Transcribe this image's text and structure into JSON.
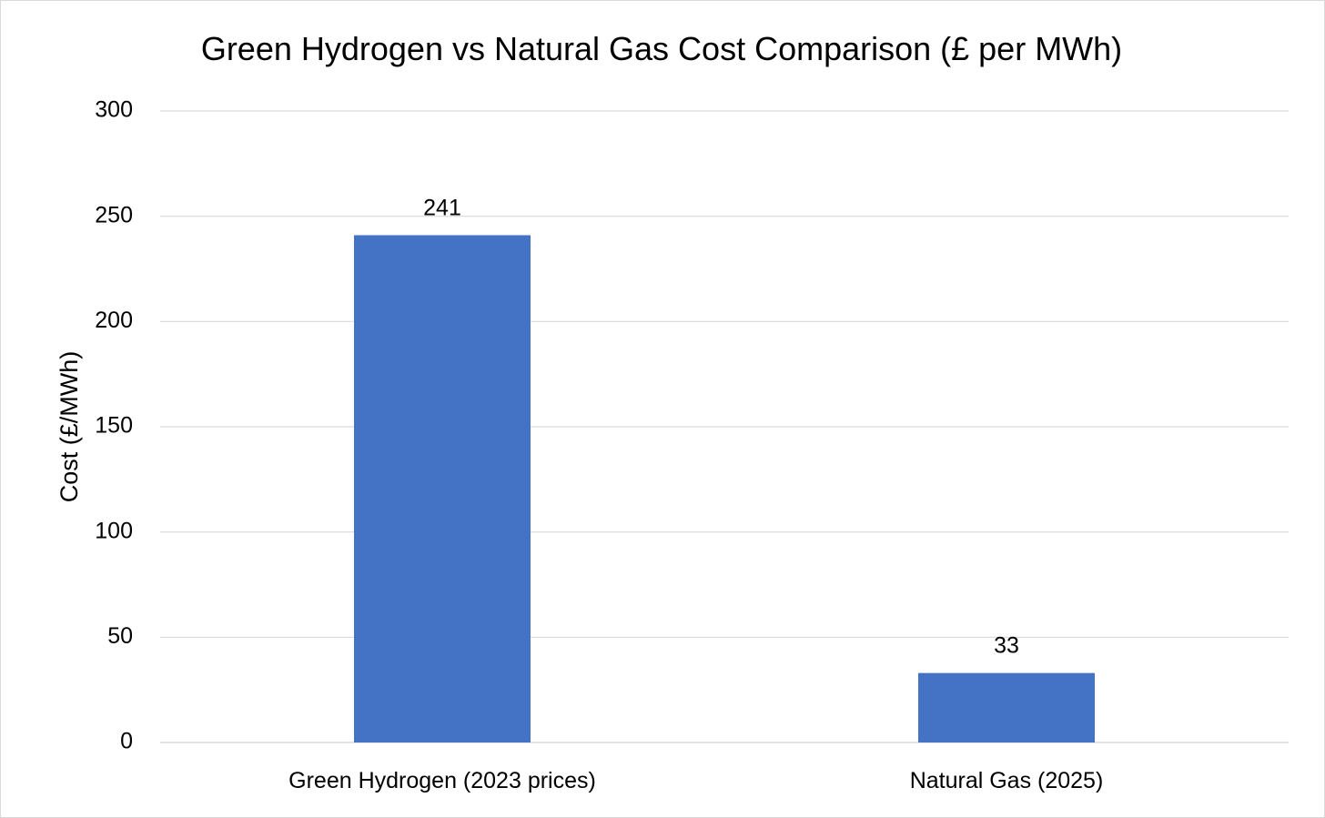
{
  "chart_data": {
    "type": "bar",
    "title": "Green Hydrogen vs Natural Gas Cost Comparison (£ per MWh)",
    "xlabel": "",
    "ylabel": "Cost (£/MWh)",
    "categories": [
      "Green Hydrogen (2023 prices)",
      "Natural Gas (2025)"
    ],
    "values": [
      241,
      33
    ],
    "data_labels": [
      "241",
      "33"
    ],
    "ylim": [
      0,
      300
    ],
    "yticks": [
      0,
      50,
      100,
      150,
      200,
      250,
      300
    ],
    "ytick_labels": [
      "0",
      "50",
      "100",
      "150",
      "200",
      "250",
      "300"
    ],
    "grid": true,
    "legend": "none",
    "bar_color": "#4472C4",
    "gridline_color": "#d9d9d9"
  }
}
